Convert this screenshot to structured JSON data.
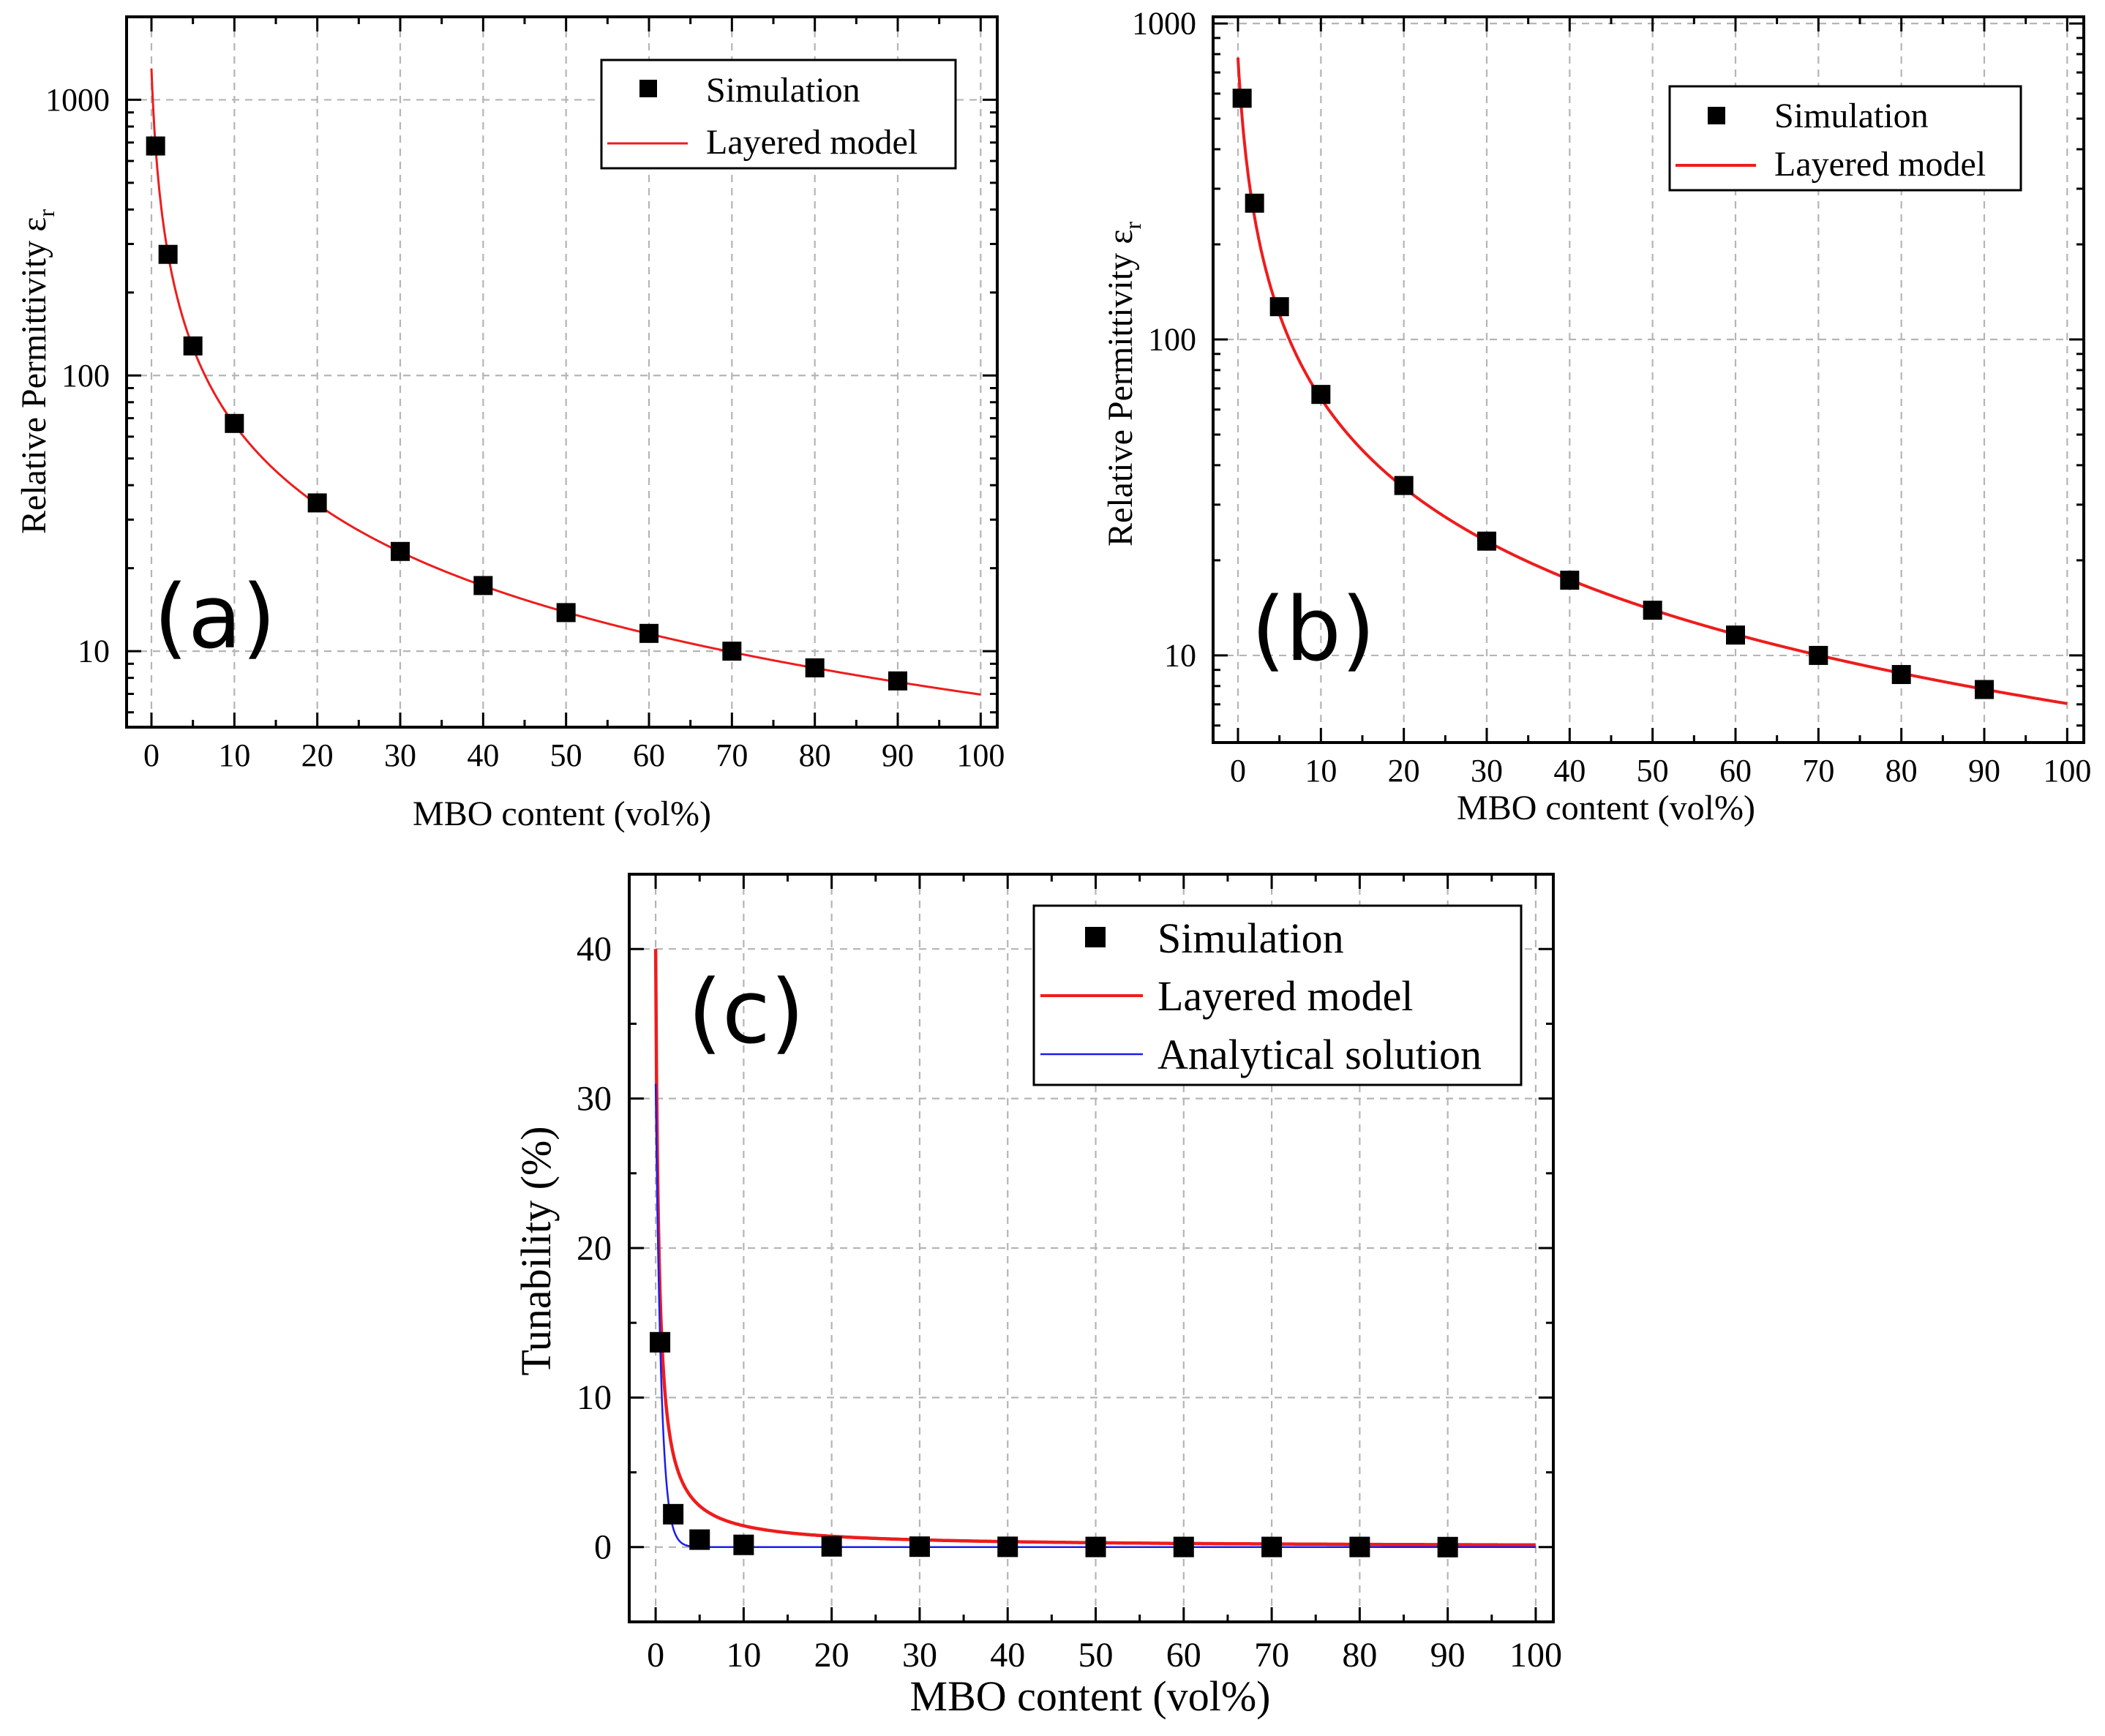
{
  "chart_data": [
    {
      "id": "a",
      "type": "scatter",
      "panel_label": "(a)",
      "xlabel": "MBO content (vol%)",
      "ylabel": "Relative Permittivity ε",
      "ylabel_sub": "r",
      "xscale": "linear",
      "yscale": "log",
      "xlim": [
        -3,
        102
      ],
      "ylim": [
        5.3,
        2000
      ],
      "xticks": [
        0,
        10,
        20,
        30,
        40,
        50,
        60,
        70,
        80,
        90,
        100
      ],
      "xtick_labels": [
        "0",
        "10",
        "20",
        "30",
        "40",
        "50",
        "60",
        "70",
        "80",
        "90",
        "100"
      ],
      "yticks": [
        10,
        100,
        1000
      ],
      "ytick_labels": [
        "10",
        "100",
        "1000"
      ],
      "grid": true,
      "legend_position": "top-right",
      "series": [
        {
          "name": "Simulation",
          "kind": "markers",
          "color": "#000000",
          "x": [
            0.5,
            2,
            5,
            10,
            20,
            30,
            40,
            50,
            60,
            70,
            80,
            90
          ],
          "y": [
            680,
            275,
            128,
            67,
            34.5,
            23,
            17.3,
            13.8,
            11.6,
            10.0,
            8.7,
            7.8
          ]
        },
        {
          "name": "Layered model",
          "kind": "line",
          "color": "#ee1c1c",
          "model": "layered",
          "params": {
            "eps_particle": 1300,
            "eps_matrix": 6.96
          }
        }
      ]
    },
    {
      "id": "b",
      "type": "scatter",
      "panel_label": "(b)",
      "xlabel": "MBO content (vol%)",
      "ylabel": "Relative Permittivity ε",
      "ylabel_sub": "r",
      "xscale": "linear",
      "yscale": "log",
      "xlim": [
        -3,
        102
      ],
      "ylim": [
        5.3,
        1050
      ],
      "xticks": [
        0,
        10,
        20,
        30,
        40,
        50,
        60,
        70,
        80,
        90,
        100
      ],
      "xtick_labels": [
        "0",
        "10",
        "20",
        "30",
        "40",
        "50",
        "60",
        "70",
        "80",
        "90",
        "100"
      ],
      "yticks": [
        10,
        100,
        1000
      ],
      "ytick_labels": [
        "10",
        "100",
        "1000"
      ],
      "grid": true,
      "legend_position": "top-right",
      "series": [
        {
          "name": "Simulation",
          "kind": "markers",
          "color": "#000000",
          "x": [
            0.5,
            2,
            5,
            10,
            20,
            30,
            40,
            50,
            60,
            70,
            80,
            90
          ],
          "y": [
            580,
            270,
            127,
            67,
            34.5,
            23,
            17.3,
            13.9,
            11.6,
            10.0,
            8.7,
            7.8
          ]
        },
        {
          "name": "Layered model",
          "kind": "line",
          "color": "#ee1c1c",
          "model": "layered",
          "params": {
            "eps_particle": 780,
            "eps_matrix": 7.04
          }
        }
      ]
    },
    {
      "id": "c",
      "type": "scatter",
      "panel_label": "(c)",
      "xlabel": "MBO content (vol%)",
      "ylabel": "Tunability (%)",
      "xscale": "linear",
      "yscale": "linear",
      "xlim": [
        -3,
        102
      ],
      "ylim": [
        -5,
        45
      ],
      "xticks": [
        0,
        10,
        20,
        30,
        40,
        50,
        60,
        70,
        80,
        90,
        100
      ],
      "xtick_labels": [
        "0",
        "10",
        "20",
        "30",
        "40",
        "50",
        "60",
        "70",
        "80",
        "90",
        "100"
      ],
      "yticks": [
        0,
        10,
        20,
        30,
        40
      ],
      "ytick_labels": [
        "0",
        "10",
        "20",
        "30",
        "40"
      ],
      "grid": true,
      "legend_position": "top-right",
      "series": [
        {
          "name": "Simulation",
          "kind": "markers",
          "color": "#000000",
          "x": [
            0.5,
            2,
            5,
            10,
            20,
            30,
            40,
            50,
            60,
            70,
            80,
            90
          ],
          "y": [
            13.7,
            2.2,
            0.5,
            0.15,
            0.05,
            0.03,
            0.02,
            0.01,
            0.01,
            0.01,
            0.01,
            0.0
          ]
        },
        {
          "name": "Layered model",
          "kind": "line",
          "color": "#ee1c1c",
          "model": "tunability-layered",
          "params": {
            "t0": 40,
            "phi0": 0.3
          }
        },
        {
          "name": "Analytical solution",
          "kind": "line",
          "color": "#1c1cee",
          "model": "tunability-analytical",
          "params": {
            "t0": 31,
            "k": 1.6
          }
        }
      ]
    }
  ]
}
